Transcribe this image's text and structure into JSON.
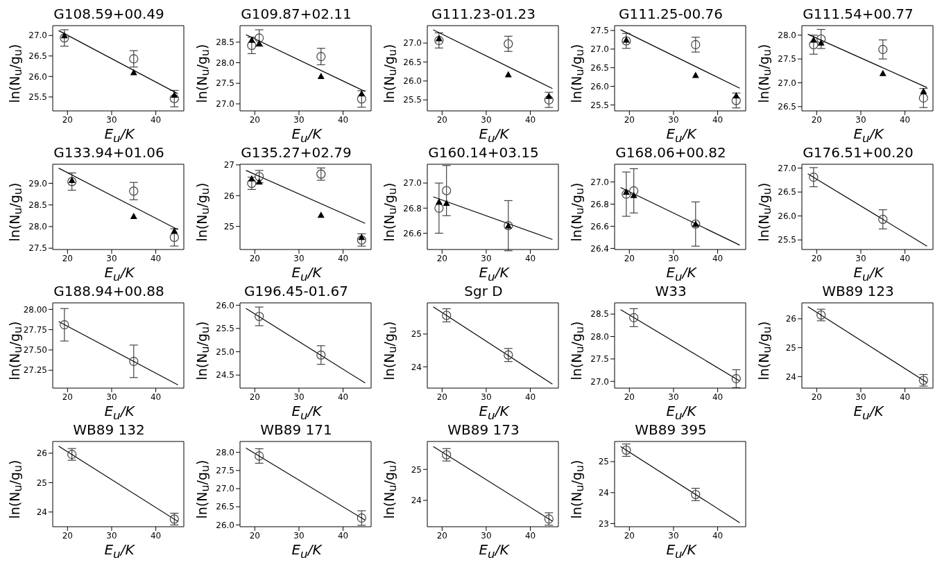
{
  "chart_data": [
    {
      "type": "scatter",
      "title": "G108.59+00.49",
      "xlabel": "E$_{u}$/K",
      "ylabel": "ln(N$_{u}$/g$_{u}$)",
      "xlim": [
        16.65,
        46.35
      ],
      "xticks": [
        20,
        30,
        40
      ],
      "ylim": [
        25.16,
        27.24
      ],
      "yticks": [
        25.5,
        {
          "value": 26,
          "label": "26.0"
        },
        26.5,
        {
          "value": 27,
          "label": "27.0"
        }
      ],
      "series": [
        {
          "marker": "circle",
          "color": "#444444",
          "x": [
            19.3,
            35,
            44.2
          ],
          "values": [
            26.94,
            26.43,
            25.46
          ],
          "errors": [
            0.2,
            0.2,
            0.2
          ]
        },
        {
          "marker": "triangle",
          "color": "#000000",
          "x": [
            19.3,
            35,
            44.2
          ],
          "values": [
            27.0,
            26.1,
            25.55
          ]
        },
        {
          "type": "line",
          "marker": "none",
          "color": "#000000",
          "x": [
            18,
            45
          ],
          "values": [
            27.12,
            25.58
          ]
        }
      ]
    },
    {
      "type": "scatter",
      "title": "G109.87+02.11",
      "xlabel": "E$_{u}$/K",
      "ylabel": "ln(N$_{u}$/g$_{u}$)",
      "xlim": [
        16.65,
        46.35
      ],
      "xticks": [
        20,
        30,
        40
      ],
      "ylim": [
        26.83,
        28.9
      ],
      "yticks": [
        {
          "value": 27,
          "label": "27.0"
        },
        27.5,
        {
          "value": 28,
          "label": "28.0"
        },
        28.5
      ],
      "series": [
        {
          "marker": "circle",
          "color": "#444444",
          "x": [
            19.3,
            21,
            35,
            44.2
          ],
          "values": [
            28.42,
            28.6,
            28.15,
            27.12
          ],
          "errors": [
            0.2,
            0.2,
            0.2,
            0.2
          ]
        },
        {
          "marker": "triangle",
          "color": "#000000",
          "x": [
            19.3,
            21,
            35,
            44.2
          ],
          "values": [
            28.55,
            28.47,
            27.67,
            27.25
          ]
        },
        {
          "type": "line",
          "marker": "none",
          "color": "#000000",
          "x": [
            18,
            45
          ],
          "values": [
            28.68,
            27.3
          ]
        }
      ]
    },
    {
      "type": "scatter",
      "title": "G111.23-01.23",
      "xlabel": "E$_{u}$/K",
      "ylabel": "ln(N$_{u}$/g$_{u}$)",
      "xlim": [
        16.65,
        46.35
      ],
      "xticks": [
        20,
        30,
        40
      ],
      "ylim": [
        25.21,
        27.46
      ],
      "yticks": [
        25.5,
        {
          "value": 26,
          "label": "26.0"
        },
        26.5,
        {
          "value": 27,
          "label": "27.0"
        }
      ],
      "series": [
        {
          "marker": "circle",
          "color": "#444444",
          "x": [
            19.3,
            35,
            44.2
          ],
          "values": [
            27.07,
            26.98,
            25.5
          ],
          "errors": [
            0.2,
            0.2,
            0.2
          ]
        },
        {
          "marker": "triangle",
          "color": "#000000",
          "x": [
            19.3,
            35,
            44.2
          ],
          "values": [
            27.12,
            26.17,
            25.6
          ]
        },
        {
          "type": "line",
          "marker": "none",
          "color": "#000000",
          "x": [
            18,
            45
          ],
          "values": [
            27.35,
            25.8
          ]
        }
      ]
    },
    {
      "type": "scatter",
      "title": "G111.25-00.76",
      "xlabel": "E$_{u}$/K",
      "ylabel": "ln(N$_{u}$/g$_{u}$)",
      "xlim": [
        16.65,
        46.35
      ],
      "xticks": [
        20,
        30,
        40
      ],
      "ylim": [
        25.34,
        27.63
      ],
      "yticks": [
        25.5,
        {
          "value": 26,
          "label": "26.0"
        },
        26.5,
        {
          "value": 27,
          "label": "27.0"
        },
        27.5
      ],
      "series": [
        {
          "marker": "circle",
          "color": "#444444",
          "x": [
            19.3,
            35,
            44.2
          ],
          "values": [
            27.22,
            27.12,
            25.62
          ],
          "errors": [
            0.2,
            0.2,
            0.2
          ]
        },
        {
          "marker": "triangle",
          "color": "#000000",
          "x": [
            19.3,
            35,
            44.2
          ],
          "values": [
            27.25,
            26.3,
            25.75
          ]
        },
        {
          "type": "line",
          "marker": "none",
          "color": "#000000",
          "x": [
            18,
            45
          ],
          "values": [
            27.52,
            25.95
          ]
        }
      ]
    },
    {
      "type": "scatter",
      "title": "G111.54+00.77",
      "xlabel": "E$_{u}$/K",
      "ylabel": "ln(N$_{u}$/g$_{u}$)",
      "xlim": [
        16.65,
        46.35
      ],
      "xticks": [
        20,
        30,
        40
      ],
      "ylim": [
        26.41,
        28.2
      ],
      "yticks": [
        26.5,
        {
          "value": 27,
          "label": "27.0"
        },
        27.5,
        {
          "value": 28,
          "label": "28.0"
        }
      ],
      "series": [
        {
          "marker": "circle",
          "color": "#444444",
          "x": [
            19.3,
            21,
            35,
            44.2
          ],
          "values": [
            27.8,
            27.92,
            27.7,
            26.68
          ],
          "errors": [
            0.2,
            0.2,
            0.2,
            0.2
          ]
        },
        {
          "marker": "triangle",
          "color": "#000000",
          "x": [
            19.3,
            21,
            35,
            44.2
          ],
          "values": [
            27.9,
            27.84,
            27.2,
            26.82
          ]
        },
        {
          "type": "line",
          "marker": "none",
          "color": "#000000",
          "x": [
            18,
            45
          ],
          "values": [
            28.02,
            26.9
          ]
        }
      ]
    },
    {
      "type": "scatter",
      "title": "G133.94+01.06",
      "xlabel": "E$_{u}$/K",
      "ylabel": "ln(N$_{u}$/g$_{u}$)",
      "xlim": [
        16.65,
        46.35
      ],
      "xticks": [
        20,
        30,
        40
      ],
      "ylim": [
        27.47,
        29.44
      ],
      "yticks": [
        27.5,
        {
          "value": 28,
          "label": "28.0"
        },
        28.5,
        {
          "value": 29,
          "label": "29.0"
        }
      ],
      "series": [
        {
          "marker": "circle",
          "color": "#444444",
          "x": [
            21,
            35,
            44.2
          ],
          "values": [
            29.04,
            28.82,
            27.75
          ],
          "errors": [
            0.2,
            0.2,
            0.2
          ]
        },
        {
          "marker": "triangle",
          "color": "#000000",
          "x": [
            21,
            35,
            44.2
          ],
          "values": [
            29.07,
            28.24,
            27.9
          ]
        },
        {
          "type": "line",
          "marker": "none",
          "color": "#000000",
          "x": [
            18,
            45
          ],
          "values": [
            29.35,
            27.93
          ]
        }
      ]
    },
    {
      "type": "scatter",
      "title": "G135.27+02.79",
      "xlabel": "E$_{u}$/K",
      "ylabel": "ln(N$_{u}$/g$_{u}$)",
      "xlim": [
        16.65,
        46.35
      ],
      "xticks": [
        20,
        30,
        40
      ],
      "ylim": [
        24.25,
        27.02
      ],
      "yticks": [
        25,
        26,
        27
      ],
      "series": [
        {
          "marker": "circle",
          "color": "#444444",
          "x": [
            19.3,
            21,
            35,
            44.2
          ],
          "values": [
            26.4,
            26.62,
            26.7,
            24.56
          ],
          "errors": [
            0.2,
            0.2,
            0.2,
            0.2
          ]
        },
        {
          "marker": "triangle",
          "color": "#000000",
          "x": [
            19.3,
            21,
            35,
            44.2
          ],
          "values": [
            26.55,
            26.45,
            25.37,
            24.65
          ]
        },
        {
          "type": "line",
          "marker": "none",
          "color": "#000000",
          "x": [
            18,
            45
          ],
          "values": [
            26.82,
            25.1
          ]
        }
      ]
    },
    {
      "type": "scatter",
      "title": "G160.14+03.15",
      "xlabel": "E$_{u}$/K",
      "ylabel": "ln(N$_{u}$/g$_{u}$)",
      "xlim": [
        16.65,
        46.35
      ],
      "xticks": [
        20,
        30,
        40
      ],
      "ylim": [
        26.47,
        27.15
      ],
      "yticks": [
        26.6,
        26.8,
        {
          "value": 27,
          "label": "27.0"
        }
      ],
      "series": [
        {
          "marker": "circle",
          "color": "#444444",
          "x": [
            19.3,
            21,
            35
          ],
          "values": [
            26.8,
            26.94,
            26.66
          ],
          "errors": [
            0.2,
            0.2,
            0.2
          ]
        },
        {
          "marker": "triangle",
          "color": "#000000",
          "x": [
            19.3,
            21,
            35
          ],
          "values": [
            26.85,
            26.84,
            26.66
          ]
        },
        {
          "type": "line",
          "marker": "none",
          "color": "#000000",
          "x": [
            18,
            45
          ],
          "values": [
            26.89,
            26.55
          ]
        }
      ]
    },
    {
      "type": "scatter",
      "title": "G168.06+00.82",
      "xlabel": "E$_{u}$/K",
      "ylabel": "ln(N$_{u}$/g$_{u}$)",
      "xlim": [
        16.65,
        46.35
      ],
      "xticks": [
        20,
        30,
        40
      ],
      "ylim": [
        26.39,
        27.16
      ],
      "yticks": [
        26.4,
        26.6,
        26.8,
        {
          "value": 27,
          "label": "27.0"
        }
      ],
      "series": [
        {
          "marker": "circle",
          "color": "#444444",
          "x": [
            19.3,
            21,
            35
          ],
          "values": [
            26.89,
            26.92,
            26.62
          ],
          "errors": [
            0.2,
            0.2,
            0.2
          ]
        },
        {
          "marker": "triangle",
          "color": "#000000",
          "x": [
            19.3,
            21,
            35
          ],
          "values": [
            26.91,
            26.88,
            26.62
          ]
        },
        {
          "type": "line",
          "marker": "none",
          "color": "#000000",
          "x": [
            18,
            45
          ],
          "values": [
            26.95,
            26.43
          ]
        }
      ]
    },
    {
      "type": "scatter",
      "title": "G176.51+00.20",
      "xlabel": "E$_{u}$/K",
      "ylabel": "ln(N$_{u}$/g$_{u}$)",
      "xlim": [
        16.65,
        46.35
      ],
      "xticks": [
        20,
        30,
        40
      ],
      "ylim": [
        25.3,
        27.08
      ],
      "yticks": [
        25.5,
        {
          "value": 26,
          "label": "26.0"
        },
        26.5,
        {
          "value": 27,
          "label": "27.0"
        }
      ],
      "series": [
        {
          "marker": "circle",
          "color": "#444444",
          "x": [
            19.3,
            35
          ],
          "values": [
            26.81,
            25.93
          ],
          "errors": [
            0.2,
            0.2
          ]
        },
        {
          "type": "line",
          "marker": "none",
          "color": "#000000",
          "x": [
            18,
            45
          ],
          "values": [
            26.88,
            25.37
          ]
        }
      ]
    },
    {
      "type": "scatter",
      "title": "G188.94+00.88",
      "xlabel": "E$_{u}$/K",
      "ylabel": "ln(N$_{u}$/g$_{u}$)",
      "xlim": [
        16.65,
        46.35
      ],
      "xticks": [
        20,
        30,
        40
      ],
      "ylim": [
        27.03,
        28.08
      ],
      "yticks": [
        27.25,
        {
          "value": 27.5,
          "label": "27.50"
        },
        27.75,
        {
          "value": 28,
          "label": "28.00"
        }
      ],
      "series": [
        {
          "marker": "circle",
          "color": "#444444",
          "x": [
            19.3,
            35
          ],
          "values": [
            27.81,
            27.36
          ],
          "errors": [
            0.2,
            0.2
          ]
        },
        {
          "type": "line",
          "marker": "none",
          "color": "#000000",
          "x": [
            18,
            45
          ],
          "values": [
            27.85,
            27.07
          ]
        }
      ]
    },
    {
      "type": "scatter",
      "title": "G196.45-01.67",
      "xlabel": "E$_{u}$/K",
      "ylabel": "ln(N$_{u}$/g$_{u}$)",
      "xlim": [
        16.65,
        46.35
      ],
      "xticks": [
        20,
        30,
        40
      ],
      "ylim": [
        24.22,
        26.05
      ],
      "yticks": [
        24.5,
        {
          "value": 25,
          "label": "25.0"
        },
        25.5,
        {
          "value": 26,
          "label": "26.0"
        }
      ],
      "series": [
        {
          "marker": "circle",
          "color": "#444444",
          "x": [
            21,
            35
          ],
          "values": [
            25.76,
            24.93
          ],
          "errors": [
            0.2,
            0.2
          ]
        },
        {
          "type": "line",
          "marker": "none",
          "color": "#000000",
          "x": [
            18,
            45
          ],
          "values": [
            25.93,
            24.33
          ]
        }
      ]
    },
    {
      "type": "scatter",
      "title": "Sgr D",
      "xlabel": "E$_{u}$/K",
      "ylabel": "ln(N$_{u}$/g$_{u}$)",
      "xlim": [
        16.65,
        46.35
      ],
      "xticks": [
        20,
        30,
        40
      ],
      "ylim": [
        23.35,
        25.95
      ],
      "yticks": [
        24,
        25
      ],
      "series": [
        {
          "marker": "circle",
          "color": "#444444",
          "x": [
            21,
            35
          ],
          "values": [
            25.57,
            24.36
          ],
          "errors": [
            0.2,
            0.2
          ]
        },
        {
          "type": "line",
          "marker": "none",
          "color": "#000000",
          "x": [
            18,
            45
          ],
          "values": [
            25.83,
            23.47
          ]
        }
      ]
    },
    {
      "type": "scatter",
      "title": "W33",
      "xlabel": "E$_{u}$/K",
      "ylabel": "ln(N$_{u}$/g$_{u}$)",
      "xlim": [
        16.65,
        46.35
      ],
      "xticks": [
        20,
        30,
        40
      ],
      "ylim": [
        26.85,
        28.75
      ],
      "yticks": [
        {
          "value": 27,
          "label": "27.0"
        },
        27.5,
        {
          "value": 28,
          "label": "28.0"
        },
        28.5
      ],
      "series": [
        {
          "marker": "circle",
          "color": "#444444",
          "x": [
            21,
            44.2
          ],
          "values": [
            28.42,
            27.06
          ],
          "errors": [
            0.2,
            0.2
          ]
        },
        {
          "type": "line",
          "marker": "none",
          "color": "#000000",
          "x": [
            18,
            45
          ],
          "values": [
            28.6,
            27.01
          ]
        }
      ]
    },
    {
      "type": "scatter",
      "title": "WB89 123",
      "xlabel": "E$_{u}$/K",
      "ylabel": "ln(N$_{u}$/g$_{u}$)",
      "xlim": [
        16.65,
        46.35
      ],
      "xticks": [
        20,
        30,
        40
      ],
      "ylim": [
        23.6,
        26.55
      ],
      "yticks": [
        24,
        25,
        26
      ],
      "series": [
        {
          "marker": "circle",
          "color": "#444444",
          "x": [
            21,
            44.2
          ],
          "values": [
            26.13,
            23.87
          ],
          "errors": [
            0.2,
            0.2
          ]
        },
        {
          "type": "line",
          "marker": "none",
          "color": "#000000",
          "x": [
            18,
            45
          ],
          "values": [
            26.42,
            23.79
          ]
        }
      ]
    },
    {
      "type": "scatter",
      "title": "WB89 132",
      "xlabel": "E$_{u}$/K",
      "ylabel": "ln(N$_{u}$/g$_{u}$)",
      "xlim": [
        16.65,
        46.35
      ],
      "xticks": [
        20,
        30,
        40
      ],
      "ylim": [
        23.5,
        26.4
      ],
      "yticks": [
        24,
        25,
        26
      ],
      "series": [
        {
          "marker": "circle",
          "color": "#444444",
          "x": [
            21,
            44.2
          ],
          "values": [
            25.96,
            23.76
          ],
          "errors": [
            0.2,
            0.2
          ]
        },
        {
          "type": "line",
          "marker": "none",
          "color": "#000000",
          "x": [
            18,
            45
          ],
          "values": [
            26.24,
            23.68
          ]
        }
      ]
    },
    {
      "type": "scatter",
      "title": "WB89 171",
      "xlabel": "E$_{u}$/K",
      "ylabel": "ln(N$_{u}$/g$_{u}$)",
      "xlim": [
        16.65,
        46.35
      ],
      "xticks": [
        20,
        30,
        40
      ],
      "ylim": [
        25.95,
        28.3
      ],
      "yticks": [
        {
          "value": 26,
          "label": "26.0"
        },
        26.5,
        {
          "value": 27,
          "label": "27.0"
        },
        27.5,
        {
          "value": 28,
          "label": "28.0"
        }
      ],
      "series": [
        {
          "marker": "circle",
          "color": "#444444",
          "x": [
            21,
            44.2
          ],
          "values": [
            27.9,
            26.19
          ],
          "errors": [
            0.2,
            0.2
          ]
        },
        {
          "type": "line",
          "marker": "none",
          "color": "#000000",
          "x": [
            18,
            45
          ],
          "values": [
            28.12,
            26.13
          ]
        }
      ]
    },
    {
      "type": "scatter",
      "title": "WB89 173",
      "xlabel": "E$_{u}$/K",
      "ylabel": "ln(N$_{u}$/g$_{u}$)",
      "xlim": [
        16.65,
        46.35
      ],
      "xticks": [
        20,
        30,
        40
      ],
      "ylim": [
        23.15,
        25.9
      ],
      "yticks": [
        24,
        25
      ],
      "series": [
        {
          "marker": "circle",
          "color": "#444444",
          "x": [
            21,
            44.2
          ],
          "values": [
            25.47,
            23.4
          ],
          "errors": [
            0.2,
            0.2
          ]
        },
        {
          "type": "line",
          "marker": "none",
          "color": "#000000",
          "x": [
            18,
            45
          ],
          "values": [
            25.74,
            23.33
          ]
        }
      ]
    },
    {
      "type": "scatter",
      "title": "WB89 395",
      "xlabel": "E$_{u}$/K",
      "ylabel": "ln(N$_{u}$/g$_{u}$)",
      "xlim": [
        16.65,
        46.35
      ],
      "xticks": [
        20,
        30,
        40
      ],
      "ylim": [
        22.9,
        25.65
      ],
      "yticks": [
        23,
        24,
        25
      ],
      "series": [
        {
          "marker": "circle",
          "color": "#444444",
          "x": [
            19.3,
            35
          ],
          "values": [
            25.37,
            23.94
          ],
          "errors": [
            0.2,
            0.2
          ]
        },
        {
          "type": "line",
          "marker": "none",
          "color": "#000000",
          "x": [
            18,
            45
          ],
          "values": [
            25.49,
            23.03
          ]
        }
      ]
    }
  ]
}
